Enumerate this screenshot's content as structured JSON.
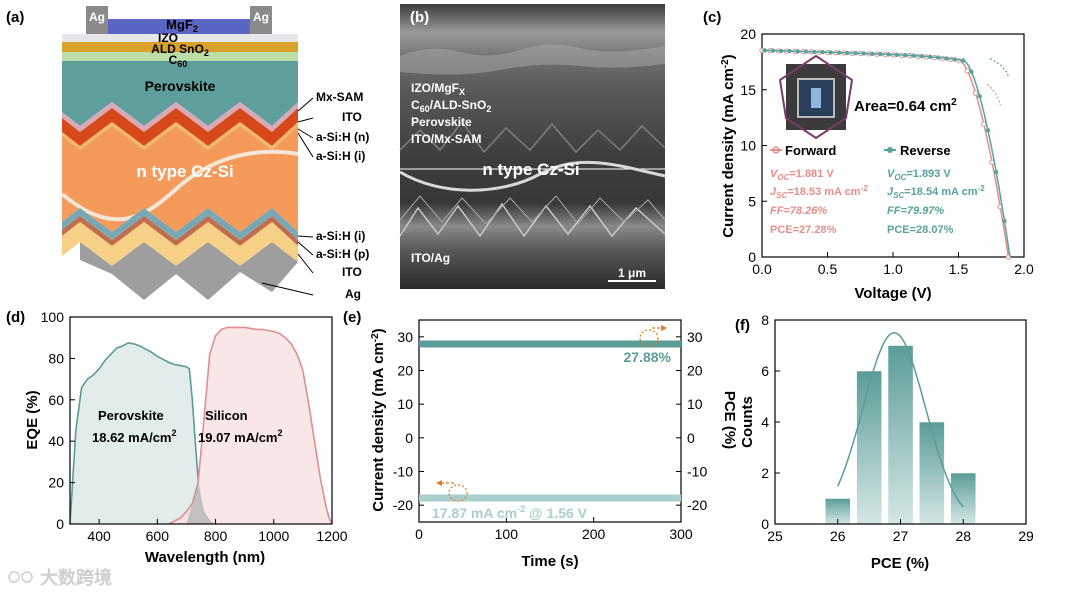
{
  "panel_labels": {
    "a": "(a)",
    "b": "(b)",
    "c": "(c)",
    "d": "(d)",
    "e": "(e)",
    "f": "(f)"
  },
  "watermark": "大数跨境",
  "panel_a": {
    "ag_left": "Ag",
    "ag_right": "Ag",
    "mgf2_base": "MgF",
    "mgf2_sub": "2",
    "izo": "IZO",
    "sno2": "ALD SnO",
    "sno2_sub": "2",
    "c60": "C",
    "c60_sub": "60",
    "perovskite": "Perovskite",
    "si": "n type Cz-Si",
    "right_labels": [
      "Mx-SAM",
      "ITO",
      "a-Si:H (n)",
      "a-Si:H (i)",
      "a-Si:H (i)",
      "a-Si:H (p)",
      "ITO",
      "Ag"
    ]
  },
  "panel_b": {
    "l1": "IZO/MgF",
    "l1_sub": "X",
    "l2a": "C",
    "l2_sub": "60",
    "l2b": "/ALD-SnO",
    "l2_sub2": "2",
    "l3": "Perovskite",
    "l4": "ITO/Mx-SAM",
    "si": "n type Cz-Si",
    "bottom": "ITO/Ag",
    "scale": "1 μm"
  },
  "chart_data": [
    {
      "panel": "c",
      "type": "line",
      "xlabel": "Voltage (V)",
      "ylabel": "Current density (mA cm",
      "ylabel_sup": "-2",
      "ylabel_end": ")",
      "xlim": [
        0,
        2.0
      ],
      "ylim": [
        0,
        20
      ],
      "xticks": [
        "0.0",
        "0.5",
        "1.0",
        "1.5",
        "2.0"
      ],
      "yticks": [
        "0",
        "5",
        "10",
        "15",
        "20"
      ],
      "series": [
        {
          "name": "Forward",
          "color": "#e48f8a",
          "voc": 1.881,
          "jsc": 18.53,
          "vmpp": 1.51
        },
        {
          "name": "Reverse",
          "color": "#58a39e",
          "voc": 1.893,
          "jsc": 18.54,
          "vmpp": 1.54
        }
      ],
      "area_label": "Area=0.64 cm",
      "area_sup": "2",
      "forward_stats": {
        "voc_sym": "V",
        "voc_sub": "OC",
        "voc_val": "=1.881 V",
        "jsc_sym": "J",
        "jsc_sub": "SC",
        "jsc_val": "=18.53 mA cm",
        "jsc_sup": "-2",
        "ff": "FF=78.26%",
        "pce": "PCE=27.28%"
      },
      "reverse_stats": {
        "voc_sym": "V",
        "voc_sub": "OC",
        "voc_val": "=1.893 V",
        "jsc_sym": "J",
        "jsc_sub": "SC",
        "jsc_val": "=18.54 mA cm",
        "jsc_sup": "-2",
        "ff": "FF=79.97%",
        "pce": "PCE=28.07%"
      }
    },
    {
      "panel": "d",
      "type": "area",
      "xlabel": "Wavelength (nm)",
      "ylabel": "EQE (%)",
      "xlim": [
        300,
        1200
      ],
      "ylim": [
        0,
        100
      ],
      "xticks": [
        "400",
        "600",
        "800",
        "1000",
        "1200"
      ],
      "yticks": [
        "0",
        "20",
        "40",
        "60",
        "80",
        "100"
      ],
      "series": [
        {
          "name": "Perovskite",
          "value_label": "18.62 mA/cm",
          "sup": "2",
          "color": "#5a9c97",
          "fill": "#dce9e7",
          "x": [
            300,
            320,
            340,
            360,
            380,
            400,
            420,
            440,
            460,
            480,
            500,
            520,
            540,
            560,
            580,
            600,
            620,
            640,
            660,
            680,
            700,
            710,
            720,
            730,
            740,
            750,
            760,
            770,
            780,
            790,
            800
          ],
          "y": [
            0,
            45,
            66,
            70,
            72,
            75,
            79,
            82,
            85,
            86,
            87.5,
            87,
            86,
            84.5,
            83,
            81,
            79.5,
            78,
            77,
            76.5,
            76,
            75,
            60,
            40,
            22,
            11,
            6,
            3,
            1.5,
            0.5,
            0
          ]
        },
        {
          "name": "Silicon",
          "value_label": "19.07 mA/cm",
          "sup": "2",
          "color": "#df8f8f",
          "fill": "#f8e3e3",
          "x": [
            640,
            660,
            680,
            700,
            720,
            740,
            760,
            780,
            800,
            820,
            840,
            860,
            880,
            900,
            920,
            940,
            960,
            980,
            1000,
            1020,
            1040,
            1060,
            1080,
            1100,
            1120,
            1140,
            1160,
            1180,
            1190,
            1200
          ],
          "y": [
            0,
            1.5,
            3,
            6,
            10,
            20,
            50,
            82,
            91,
            94,
            95,
            95,
            95,
            95,
            94.5,
            94,
            94,
            93.5,
            93,
            92,
            90,
            87,
            82,
            74,
            58,
            40,
            22,
            8,
            3,
            0
          ]
        }
      ]
    },
    {
      "panel": "e",
      "type": "line",
      "xlabel": "Time (s)",
      "ylabel": "Current density (mA cm",
      "ylabel_sup": "-2",
      "ylabel_end": ")",
      "y2label": "PCE (%)",
      "xlim": [
        0,
        300
      ],
      "ylim": [
        -25,
        35
      ],
      "xticks": [
        "0",
        "100",
        "200",
        "300"
      ],
      "yticks": [
        "-20",
        "-10",
        "0",
        "10",
        "20",
        "30"
      ],
      "y2ticks": [
        "-20",
        "-10",
        "0",
        "10",
        "20",
        "30"
      ],
      "series": [
        {
          "name": "PCE",
          "value": 27.88,
          "label": "27.88%",
          "color": "#5a9c97"
        },
        {
          "name": "Current density",
          "value": -17.87,
          "label": "17.87 mA cm",
          "sup": "-2",
          "label_end": " @ 1.56 V",
          "color": "#a8cfcc"
        }
      ]
    },
    {
      "panel": "f",
      "type": "bar",
      "xlabel": "PCE (%)",
      "ylabel": "Counts",
      "xlim": [
        25,
        29
      ],
      "ylim": [
        0,
        8
      ],
      "xticks": [
        "25",
        "26",
        "27",
        "28",
        "29"
      ],
      "yticks": [
        "0",
        "2",
        "4",
        "6",
        "8"
      ],
      "categories": [
        26,
        26.5,
        27,
        27.5,
        28
      ],
      "values": [
        1,
        6,
        7,
        4,
        2
      ],
      "fit": {
        "mean": 26.9,
        "sigma": 0.5,
        "peak": 7.5
      },
      "color": "#5a9c97"
    }
  ]
}
